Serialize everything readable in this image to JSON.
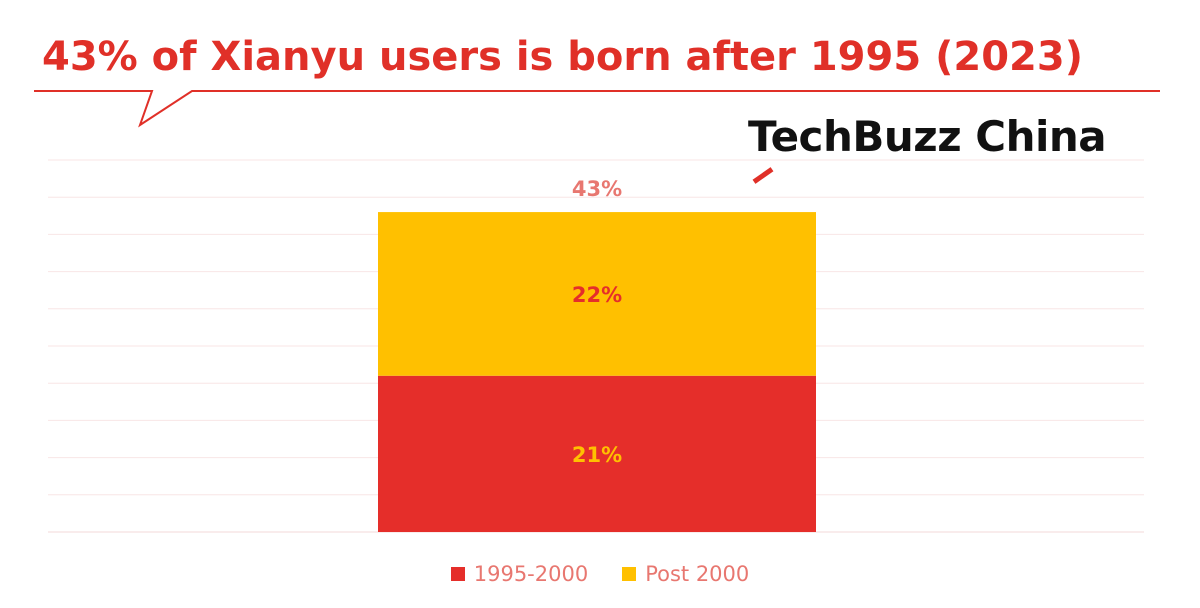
{
  "header": {
    "title": "43% of Xianyu users is born after 1995 (2023)",
    "logo_text": "TechBuzz China",
    "logo_icon": "techbuzz-logo-slash",
    "accent_color": "#e03028"
  },
  "chart_data": {
    "type": "bar",
    "stacked": true,
    "categories": [
      ""
    ],
    "series": [
      {
        "name": "1995-2000",
        "values": [
          21
        ],
        "labels": [
          "21%"
        ],
        "color": "#e52e2a",
        "label_color": "#ffc000"
      },
      {
        "name": "Post 2000",
        "values": [
          22
        ],
        "labels": [
          "22%"
        ],
        "color": "#ffc000",
        "label_color": "#e52e2a"
      }
    ],
    "totals": [
      "43%"
    ],
    "total_label_color": "#e87770",
    "title": "43% of Xianyu users is born after 1995 (2023)",
    "xlabel": "",
    "ylabel": "",
    "ylim": [
      0,
      50
    ],
    "grid": true,
    "legend_position": "bottom"
  }
}
